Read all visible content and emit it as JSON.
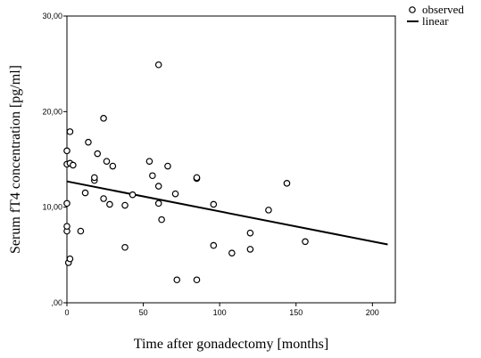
{
  "chart_data": {
    "type": "scatter",
    "xlabel": "Time after gonadectomy [months]",
    "ylabel": "Serum fT4 concentration [pg/ml]",
    "xlim": [
      0,
      215
    ],
    "ylim": [
      0,
      30
    ],
    "x_ticks": [
      0,
      50,
      100,
      150,
      200
    ],
    "x_tick_labels": [
      "0",
      "50",
      "100",
      "150",
      "200"
    ],
    "y_ticks": [
      0,
      10,
      20,
      30
    ],
    "y_tick_labels": [
      ",00",
      "10,00",
      "20,00",
      "30,00"
    ],
    "grid": false,
    "legend": {
      "placement": "top-right, outside plot",
      "entries": [
        {
          "label": "observed",
          "marker": "open-circle"
        },
        {
          "label": "linear",
          "marker": "line"
        }
      ]
    },
    "series": [
      {
        "name": "observed",
        "marker": "open-circle",
        "points": [
          [
            0,
            7.5
          ],
          [
            0,
            8.0
          ],
          [
            0,
            10.4
          ],
          [
            0,
            14.5
          ],
          [
            0,
            15.9
          ],
          [
            1,
            4.2
          ],
          [
            2,
            4.6
          ],
          [
            2,
            14.6
          ],
          [
            2,
            17.9
          ],
          [
            4,
            14.4
          ],
          [
            9,
            7.5
          ],
          [
            12,
            11.5
          ],
          [
            14,
            16.8
          ],
          [
            18,
            12.8
          ],
          [
            18,
            13.1
          ],
          [
            20,
            15.6
          ],
          [
            24,
            10.9
          ],
          [
            24,
            19.3
          ],
          [
            26,
            14.8
          ],
          [
            28,
            10.3
          ],
          [
            30,
            14.3
          ],
          [
            38,
            5.8
          ],
          [
            38,
            10.2
          ],
          [
            43,
            11.3
          ],
          [
            54,
            14.8
          ],
          [
            56,
            13.3
          ],
          [
            60,
            24.9
          ],
          [
            60,
            12.2
          ],
          [
            60,
            10.4
          ],
          [
            62,
            8.7
          ],
          [
            66,
            14.3
          ],
          [
            71,
            11.4
          ],
          [
            72,
            2.4
          ],
          [
            85,
            13.0
          ],
          [
            85,
            13.1
          ],
          [
            85,
            2.4
          ],
          [
            96,
            10.3
          ],
          [
            96,
            6.0
          ],
          [
            108,
            5.2
          ],
          [
            120,
            7.3
          ],
          [
            120,
            5.6
          ],
          [
            132,
            9.7
          ],
          [
            144,
            12.5
          ],
          [
            156,
            6.4
          ]
        ]
      },
      {
        "name": "linear",
        "marker": "line",
        "line": [
          [
            0,
            12.7
          ],
          [
            210,
            6.1
          ]
        ]
      }
    ]
  }
}
